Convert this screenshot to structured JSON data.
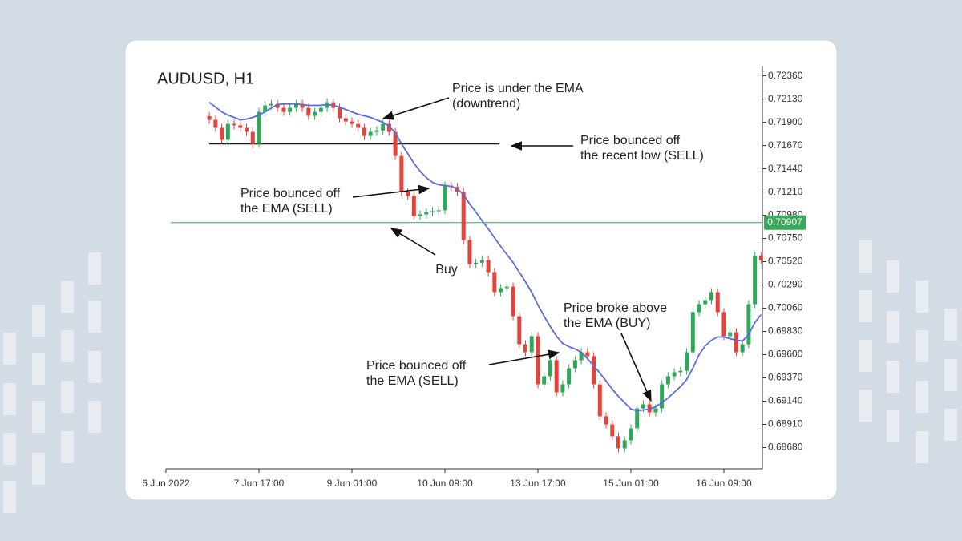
{
  "chart_data": {
    "type": "candlestick",
    "title": "AUDUSD, H1",
    "categories": [
      "6 Jun 2022",
      null,
      null,
      null,
      null,
      null,
      null,
      null,
      null,
      null,
      null,
      null,
      null,
      null,
      null,
      "7 Jun 17:00",
      null,
      null,
      null,
      null,
      null,
      null,
      null,
      null,
      null,
      null,
      null,
      null,
      null,
      null,
      "9 Jun 01:00",
      null,
      null,
      null,
      null,
      null,
      null,
      null,
      null,
      null,
      null,
      null,
      null,
      null,
      null,
      "10 Jun 09:00",
      null,
      null,
      null,
      null,
      null,
      null,
      null,
      null,
      null,
      null,
      null,
      null,
      null,
      null,
      "13 Jun 17:00",
      null,
      null,
      null,
      null,
      null,
      null,
      null,
      null,
      null,
      null,
      null,
      null,
      null,
      null,
      "15 Jun 01:00",
      null,
      null,
      null,
      null,
      null,
      null,
      null,
      null,
      null,
      null,
      null,
      null,
      null,
      null,
      "16 Jun 09:00",
      null,
      null,
      null,
      null,
      null,
      null
    ],
    "open": [
      null,
      null,
      null,
      null,
      null,
      null,
      null,
      0.7196,
      0.71924,
      0.71845,
      0.71726,
      0.71884,
      0.7187,
      0.71845,
      0.71805,
      0.71686,
      0.72003,
      0.72067,
      0.72082,
      0.72043,
      0.72003,
      0.72043,
      0.72082,
      0.72043,
      0.71964,
      0.72003,
      0.72043,
      0.72098,
      0.72043,
      0.7194,
      0.71908,
      0.71884,
      0.71845,
      0.71765,
      0.71805,
      0.7182,
      0.71884,
      0.71805,
      0.71567,
      0.7121,
      0.71171,
      0.70972,
      0.70988,
      0.71012,
      0.7102,
      0.7103,
      0.71274,
      0.7126,
      0.7121,
      0.70734,
      0.70496,
      0.7051,
      0.70536,
      0.70417,
      0.70219,
      0.70259,
      0.70274,
      0.69981,
      0.69703,
      0.69624,
      0.69783,
      0.69307,
      0.69386,
      0.69545,
      0.69228,
      0.69307,
      0.69466,
      0.69545,
      0.69624,
      0.69585,
      0.69307,
      0.6899,
      0.6891,
      0.68792,
      0.68673,
      0.68752,
      0.68871,
      0.69069,
      0.69109,
      0.69029,
      0.69069,
      0.69307,
      0.69386,
      0.69426,
      0.6944,
      0.69624,
      0.70021,
      0.701,
      0.7014,
      0.70219,
      0.70021,
      0.69783,
      0.69822,
      0.69624,
      0.69703,
      0.701,
      0.70576
    ],
    "high": [
      null,
      null,
      null,
      null,
      null,
      null,
      null,
      0.72,
      0.71964,
      0.71885,
      0.71924,
      0.71924,
      0.7191,
      0.71885,
      0.71845,
      0.72043,
      0.72107,
      0.72122,
      0.72122,
      0.72083,
      0.72083,
      0.72122,
      0.72122,
      0.72083,
      0.72043,
      0.72083,
      0.72138,
      0.72138,
      0.72083,
      0.7198,
      0.71948,
      0.71924,
      0.71885,
      0.71845,
      0.7186,
      0.71924,
      0.71924,
      0.71845,
      0.71607,
      0.7125,
      0.71211,
      0.71028,
      0.71052,
      0.7106,
      0.7107,
      0.71314,
      0.71314,
      0.713,
      0.7125,
      0.70774,
      0.7055,
      0.70576,
      0.70576,
      0.70457,
      0.70299,
      0.70314,
      0.70314,
      0.70021,
      0.69743,
      0.69823,
      0.69823,
      0.69426,
      0.69585,
      0.69585,
      0.69347,
      0.69506,
      0.69585,
      0.69664,
      0.69664,
      0.69625,
      0.69347,
      0.6903,
      0.6895,
      0.68832,
      0.68792,
      0.68911,
      0.69109,
      0.69149,
      0.69149,
      0.69109,
      0.69347,
      0.69426,
      0.69466,
      0.6948,
      0.69664,
      0.70061,
      0.7014,
      0.7018,
      0.70259,
      0.70259,
      0.70061,
      0.69862,
      0.69862,
      0.69743,
      0.7014,
      0.70616,
      0.70616
    ],
    "low": [
      null,
      null,
      null,
      null,
      null,
      null,
      null,
      0.71884,
      0.71805,
      0.71686,
      0.71686,
      0.7183,
      0.71805,
      0.71765,
      0.71646,
      0.71646,
      0.71963,
      0.72027,
      0.72003,
      0.71963,
      0.71963,
      0.72003,
      0.72003,
      0.71924,
      0.71924,
      0.71963,
      0.72003,
      0.72003,
      0.719,
      0.71868,
      0.71844,
      0.71805,
      0.71725,
      0.71725,
      0.71765,
      0.7178,
      0.71765,
      0.71527,
      0.7117,
      0.71131,
      0.70932,
      0.70932,
      0.70948,
      0.70972,
      0.7098,
      0.7099,
      0.7122,
      0.7117,
      0.70694,
      0.70456,
      0.70456,
      0.7047,
      0.70377,
      0.70179,
      0.70179,
      0.70219,
      0.69941,
      0.69663,
      0.69584,
      0.69584,
      0.69267,
      0.69267,
      0.69346,
      0.69188,
      0.69188,
      0.69267,
      0.69426,
      0.69505,
      0.69545,
      0.69267,
      0.6895,
      0.6887,
      0.68752,
      0.68633,
      0.68633,
      0.68712,
      0.68831,
      0.69029,
      0.68989,
      0.68989,
      0.69029,
      0.69267,
      0.69346,
      0.69386,
      0.694,
      0.69584,
      0.69981,
      0.7006,
      0.701,
      0.69981,
      0.69743,
      0.69743,
      0.69584,
      0.69584,
      0.69663,
      0.7006,
      0.70496
    ],
    "close": [
      null,
      null,
      null,
      null,
      null,
      null,
      null,
      0.71924,
      0.71845,
      0.71726,
      0.71884,
      0.7187,
      0.71845,
      0.71805,
      0.71686,
      0.72003,
      0.72067,
      0.72082,
      0.72043,
      0.72003,
      0.72043,
      0.72082,
      0.72043,
      0.71964,
      0.72003,
      0.72043,
      0.72098,
      0.72043,
      0.7194,
      0.71908,
      0.71884,
      0.71845,
      0.71765,
      0.71805,
      0.7182,
      0.71884,
      0.71805,
      0.71567,
      0.7121,
      0.71171,
      0.70972,
      0.70988,
      0.71012,
      0.7102,
      0.7103,
      0.71274,
      0.7126,
      0.7121,
      0.70734,
      0.70496,
      0.7051,
      0.70536,
      0.70417,
      0.70219,
      0.70259,
      0.70274,
      0.69981,
      0.69703,
      0.69624,
      0.69783,
      0.69307,
      0.69386,
      0.69545,
      0.69228,
      0.69307,
      0.69466,
      0.69545,
      0.69624,
      0.69585,
      0.69307,
      0.6899,
      0.6891,
      0.68792,
      0.68673,
      0.68752,
      0.68871,
      0.69069,
      0.69109,
      0.69029,
      0.69069,
      0.69307,
      0.69386,
      0.69426,
      0.6944,
      0.69624,
      0.70021,
      0.701,
      0.7014,
      0.70219,
      0.70021,
      0.69783,
      0.69822,
      0.69624,
      0.69703,
      0.701,
      0.70576,
      0.70536
    ],
    "up_color": "#2fa85a",
    "down_color": "#e2433b",
    "ema": {
      "color": "#5b6be0",
      "values": [
        null,
        null,
        null,
        null,
        null,
        null,
        null,
        0.72098,
        0.72051,
        0.72003,
        0.71971,
        0.71948,
        0.71924,
        0.71932,
        0.71948,
        0.71971,
        0.72003,
        0.72043,
        0.72075,
        0.72082,
        0.72082,
        0.72082,
        0.72075,
        0.72067,
        0.72067,
        0.72067,
        0.72075,
        0.72067,
        0.72051,
        0.72027,
        0.72003,
        0.71979,
        0.71964,
        0.71948,
        0.71924,
        0.719,
        0.7186,
        0.71797,
        0.71686,
        0.71591,
        0.71496,
        0.71416,
        0.71353,
        0.71305,
        0.71282,
        0.71274,
        0.71266,
        0.71242,
        0.71186,
        0.71091,
        0.71012,
        0.70925,
        0.70845,
        0.70758,
        0.70671,
        0.70592,
        0.70512,
        0.70417,
        0.70322,
        0.70219,
        0.70092,
        0.69981,
        0.69878,
        0.69783,
        0.69711,
        0.6968,
        0.69656,
        0.69624,
        0.69561,
        0.69489,
        0.69418,
        0.69339,
        0.69259,
        0.69188,
        0.69125,
        0.69061,
        0.69045,
        0.69053,
        0.69061,
        0.69085,
        0.69125,
        0.69172,
        0.69228,
        0.69283,
        0.69355,
        0.69466,
        0.696,
        0.69688,
        0.69743,
        0.69775,
        0.69775,
        0.69759,
        0.69743,
        0.69735,
        0.69799,
        0.69918,
        0.69997
      ]
    },
    "level": {
      "value": 0.71686,
      "color": "#1f1f1f"
    },
    "last_price": {
      "value": 0.70907,
      "color": "#3aa85a"
    },
    "ylim": [
      0.6847,
      0.7246
    ],
    "yticks": [
      {
        "value": 0.7236,
        "label": "0.72360"
      },
      {
        "value": 0.7213,
        "label": "0.72130"
      },
      {
        "value": 0.719,
        "label": "0.71900"
      },
      {
        "value": 0.7167,
        "label": "0.71670"
      },
      {
        "value": 0.7144,
        "label": "0.71440"
      },
      {
        "value": 0.7121,
        "label": "0.71210"
      },
      {
        "value": 0.7098,
        "label": "0.70980"
      },
      {
        "value": 0.7075,
        "label": "0.70750"
      },
      {
        "value": 0.7052,
        "label": "0.70520"
      },
      {
        "value": 0.7029,
        "label": "0.70290"
      },
      {
        "value": 0.7006,
        "label": "0.70060"
      },
      {
        "value": 0.6983,
        "label": "0.69830"
      },
      {
        "value": 0.696,
        "label": "0.69600"
      },
      {
        "value": 0.6937,
        "label": "0.69370"
      },
      {
        "value": 0.6914,
        "label": "0.69140"
      },
      {
        "value": 0.6891,
        "label": "0.68910"
      },
      {
        "value": 0.6868,
        "label": "0.68680"
      }
    ],
    "annotations": [
      {
        "lines": [
          "Price is under the EMA",
          "(downtrend)"
        ]
      },
      {
        "lines": [
          "Price bounced off",
          "the recent low (SELL)"
        ]
      },
      {
        "lines": [
          "Price bounced off",
          "the EMA (SELL)"
        ]
      },
      {
        "lines": [
          "Buy"
        ]
      },
      {
        "lines": [
          "Price bounced off",
          "the EMA (SELL)"
        ]
      },
      {
        "lines": [
          "Price broke above",
          "the EMA (BUY)"
        ]
      }
    ]
  }
}
